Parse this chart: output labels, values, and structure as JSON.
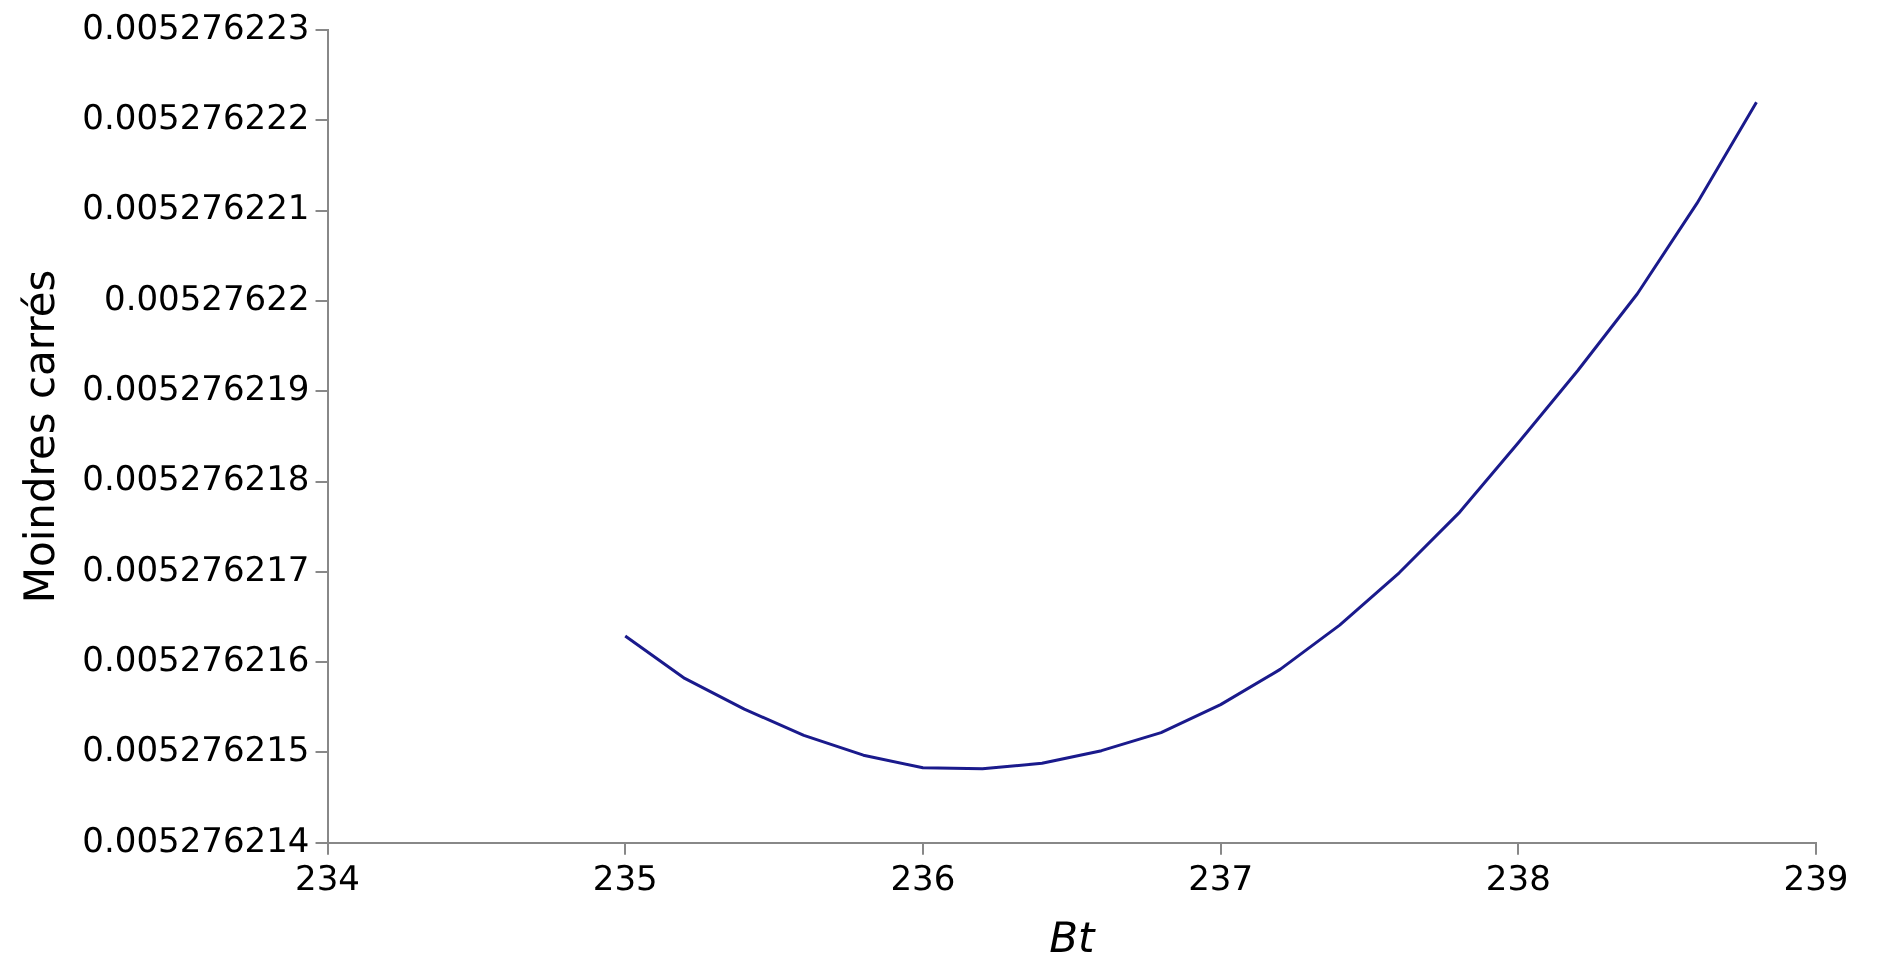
{
  "chart_data": {
    "type": "line",
    "xlabel": "Bt",
    "ylabel": "Moindres carrés",
    "x": [
      235,
      235.2,
      235.4,
      235.6,
      235.8,
      236,
      236.2,
      236.4,
      236.6,
      236.8,
      237,
      237.2,
      237.4,
      237.6,
      237.8,
      238,
      238.2,
      238.4,
      238.6,
      238.8
    ],
    "series": [
      {
        "color": "#1a1a8c",
        "values": [
          0.00527621629,
          0.00527621582,
          0.00527621548,
          0.00527621519,
          0.00527621497,
          0.00527621483,
          0.00527621482,
          0.00527621488,
          0.00527621502,
          0.00527621522,
          0.00527621553,
          0.00527621592,
          0.00527621641,
          0.00527621699,
          0.00527621765,
          0.00527621843,
          0.00527621923,
          0.00527622008,
          0.00527622108,
          0.0052762222
        ]
      }
    ],
    "xlim": [
      234,
      239
    ],
    "xticks": [
      234,
      235,
      236,
      237,
      238,
      239
    ],
    "ylim": [
      0.005276214,
      0.005276223
    ],
    "yticks": [
      0.005276214,
      0.005276215,
      0.005276216,
      0.005276217,
      0.005276218,
      0.005276219,
      0.00527622,
      0.005276221,
      0.005276222,
      0.005276223
    ],
    "grid": false,
    "legend": false,
    "marker": "none",
    "line_style": "solid"
  }
}
